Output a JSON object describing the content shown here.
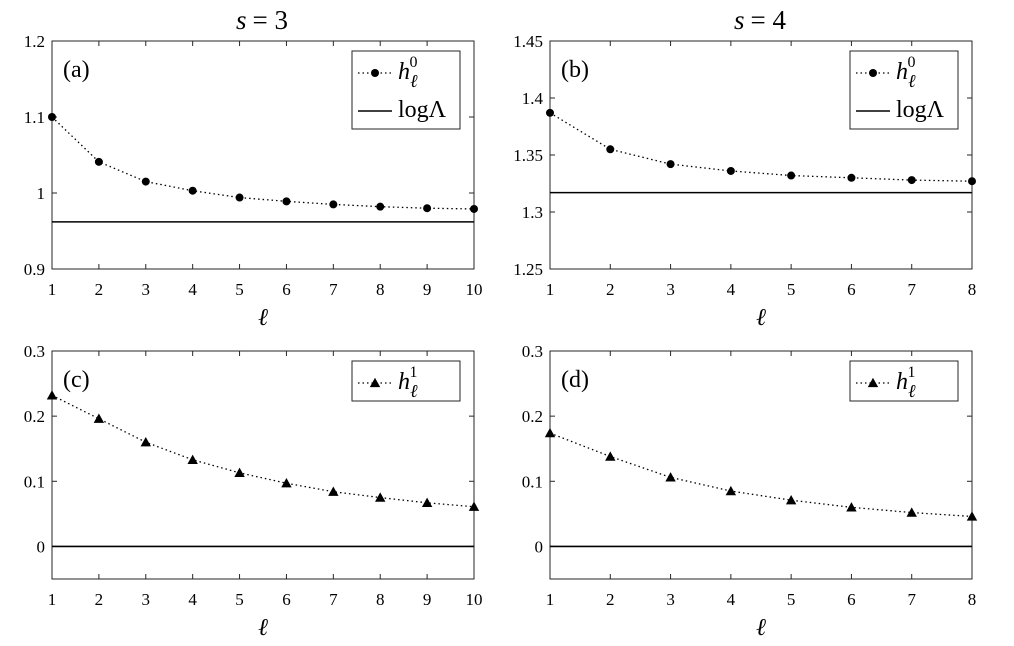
{
  "titles": {
    "col1": {
      "var": "s",
      "eq": "= 3"
    },
    "col2": {
      "var": "s",
      "eq": "= 4"
    }
  },
  "chart_data": [
    {
      "panel": "(a)",
      "type": "line",
      "xlabel": "ℓ",
      "xlim": [
        1,
        10
      ],
      "ylim": [
        0.9,
        1.2
      ],
      "xticks": [
        "1",
        "2",
        "3",
        "4",
        "5",
        "6",
        "7",
        "8",
        "9",
        "10"
      ],
      "yticks": [
        "0.9",
        "1",
        "1.1",
        "1.2"
      ],
      "series": [
        {
          "name": "h_ℓ^0",
          "base": "h",
          "sub": "ℓ",
          "sup": "0",
          "marker": "circle",
          "style": "dotted",
          "x": [
            1,
            2,
            3,
            4,
            5,
            6,
            7,
            8,
            9,
            10
          ],
          "y": [
            1.1,
            1.041,
            1.015,
            1.003,
            0.994,
            0.989,
            0.985,
            0.982,
            0.98,
            0.979
          ]
        },
        {
          "name": "logΛ",
          "style": "solid",
          "constant": 0.962
        }
      ],
      "legend_position": "top-right"
    },
    {
      "panel": "(b)",
      "type": "line",
      "xlabel": "ℓ",
      "xlim": [
        1,
        8
      ],
      "ylim": [
        1.25,
        1.45
      ],
      "xticks": [
        "1",
        "2",
        "3",
        "4",
        "5",
        "6",
        "7",
        "8"
      ],
      "yticks": [
        "1.25",
        "1.3",
        "1.35",
        "1.4",
        "1.45"
      ],
      "series": [
        {
          "name": "h_ℓ^0",
          "base": "h",
          "sub": "ℓ",
          "sup": "0",
          "marker": "circle",
          "style": "dotted",
          "x": [
            1,
            2,
            3,
            4,
            5,
            6,
            7,
            8
          ],
          "y": [
            1.387,
            1.355,
            1.342,
            1.336,
            1.332,
            1.33,
            1.328,
            1.327
          ]
        },
        {
          "name": "logΛ",
          "style": "solid",
          "constant": 1.317
        }
      ],
      "legend_position": "top-right"
    },
    {
      "panel": "(c)",
      "type": "line",
      "xlabel": "ℓ",
      "xlim": [
        1,
        10
      ],
      "ylim": [
        -0.05,
        0.3
      ],
      "xticks": [
        "1",
        "2",
        "3",
        "4",
        "5",
        "6",
        "7",
        "8",
        "9",
        "10"
      ],
      "yticks": [
        "0",
        "0.1",
        "0.2",
        "0.3"
      ],
      "series": [
        {
          "name": "h_ℓ^1",
          "base": "h",
          "sub": "ℓ",
          "sup": "1",
          "marker": "triangle",
          "style": "dotted",
          "x": [
            1,
            2,
            3,
            4,
            5,
            6,
            7,
            8,
            9,
            10
          ],
          "y": [
            0.232,
            0.196,
            0.16,
            0.133,
            0.113,
            0.097,
            0.084,
            0.075,
            0.067,
            0.061
          ]
        },
        {
          "name": "",
          "style": "solid",
          "constant": 0,
          "in_legend": false
        }
      ],
      "legend_position": "top-right"
    },
    {
      "panel": "(d)",
      "type": "line",
      "xlabel": "ℓ",
      "xlim": [
        1,
        8
      ],
      "ylim": [
        -0.05,
        0.3
      ],
      "xticks": [
        "1",
        "2",
        "3",
        "4",
        "5",
        "6",
        "7",
        "8"
      ],
      "yticks": [
        "0",
        "0.1",
        "0.2",
        "0.3"
      ],
      "series": [
        {
          "name": "h_ℓ^1",
          "base": "h",
          "sub": "ℓ",
          "sup": "1",
          "marker": "triangle",
          "style": "dotted",
          "x": [
            1,
            2,
            3,
            4,
            5,
            6,
            7,
            8
          ],
          "y": [
            0.174,
            0.138,
            0.106,
            0.085,
            0.071,
            0.06,
            0.052,
            0.046
          ]
        },
        {
          "name": "",
          "style": "solid",
          "constant": 0,
          "in_legend": false
        }
      ],
      "legend_position": "top-right"
    }
  ]
}
